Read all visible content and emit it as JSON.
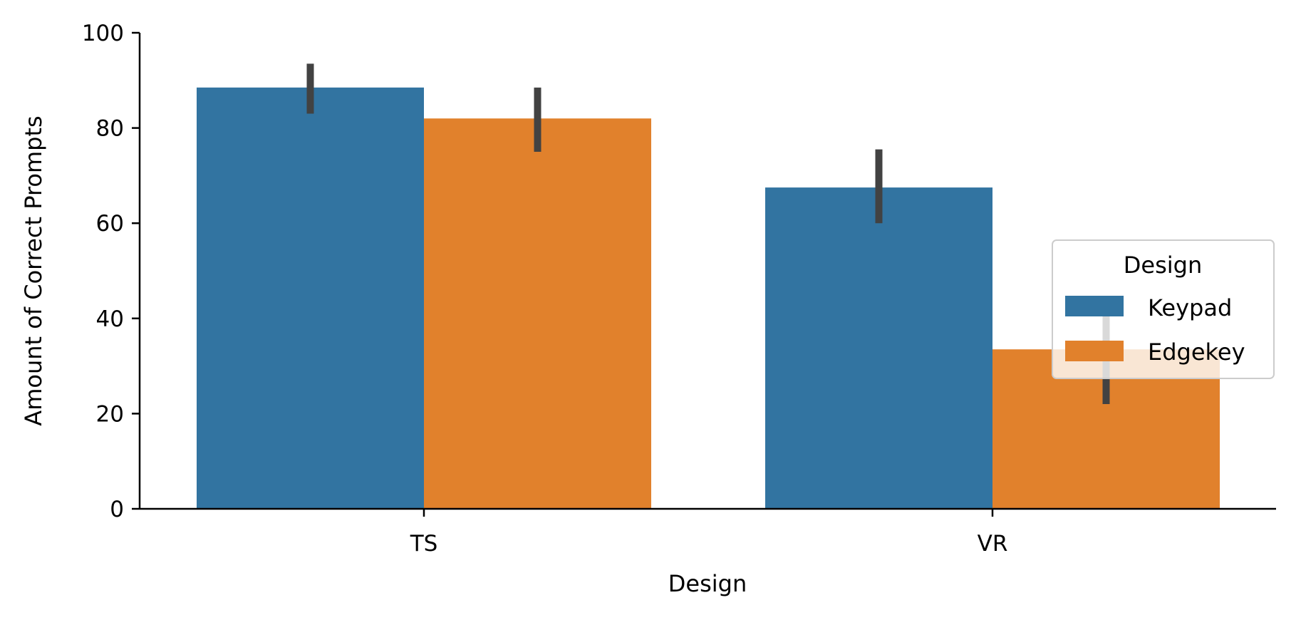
{
  "chart_data": {
    "type": "bar",
    "title": "",
    "xlabel": "Design",
    "ylabel": "Amount of Correct Prompts",
    "categories": [
      "TS",
      "VR"
    ],
    "ylim": [
      0,
      100
    ],
    "yticks": [
      0,
      20,
      40,
      60,
      80,
      100
    ],
    "series": [
      {
        "name": "Keypad",
        "color": "#3274a1",
        "values": [
          88.5,
          67.5
        ],
        "error_low": [
          83,
          60
        ],
        "error_high": [
          93.5,
          75.5
        ]
      },
      {
        "name": "Edgekey",
        "color": "#e1812c",
        "values": [
          82,
          33.5
        ],
        "error_low": [
          75,
          22
        ],
        "error_high": [
          88.5,
          40.5
        ]
      }
    ],
    "error_bar_color": "#424242",
    "legend": {
      "title": "Design",
      "position": "center-right"
    },
    "grid": false
  }
}
